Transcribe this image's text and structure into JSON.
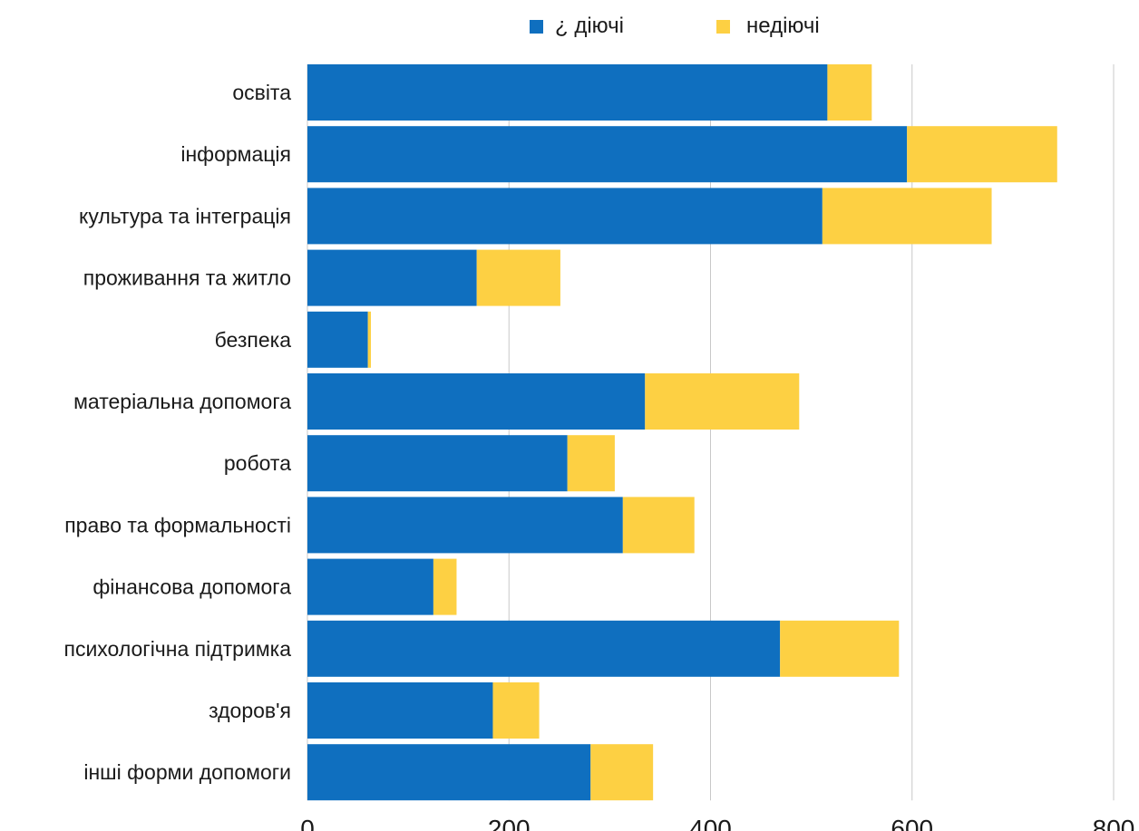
{
  "chart_data": {
    "type": "bar",
    "orientation": "horizontal",
    "stacked": true,
    "title": "",
    "xlabel": "",
    "ylabel": "",
    "categories": [
      "освіта",
      "інформація",
      "культура та інтеграція",
      "проживання та житло",
      "безпека",
      "матеріальна допомога",
      "робота",
      "право та формальності",
      "фінансова допомога",
      "психологічна підтримка",
      "здоров'я",
      "інші форми допомоги"
    ],
    "series": [
      {
        "name": "¿ діючі",
        "color": "#0f6fbf",
        "values": [
          516,
          595,
          511,
          168,
          60,
          335,
          258,
          313,
          125,
          469,
          184,
          281
        ]
      },
      {
        "name": "недіючі",
        "color": "#fdd043",
        "values": [
          44,
          149,
          168,
          83,
          3,
          153,
          47,
          71,
          23,
          118,
          46,
          62
        ]
      }
    ],
    "xlim": [
      0,
      800
    ],
    "xticks": [
      "0",
      "200",
      "400",
      "600",
      "800"
    ],
    "grid": true,
    "legend": "top-center"
  }
}
